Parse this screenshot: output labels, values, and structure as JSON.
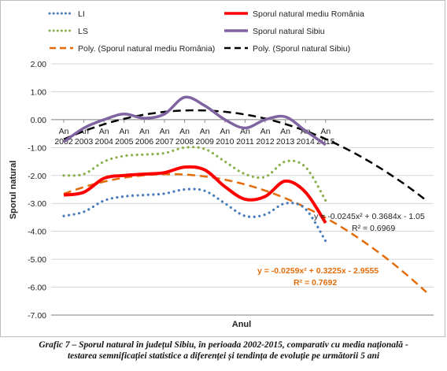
{
  "chart_data": {
    "type": "line",
    "ylabel": "Sporul natural",
    "xlabel": "Anul",
    "ylim": [
      -7.0,
      2.0
    ],
    "ytick_labels": [
      "2.00",
      "1.00",
      "0.00",
      "-1.00",
      "-2.00",
      "-3.00",
      "-4.00",
      "-5.00",
      "-6.00",
      "-7.00"
    ],
    "categories": [
      "An 2002",
      "An 2003",
      "An 2004",
      "An 2005",
      "An 2006",
      "An 2007",
      "An 2008",
      "An 2009",
      "An 2010",
      "An 2011",
      "An 2012",
      "An 2013",
      "An 2014",
      "An 2015"
    ],
    "category_labels_top": [
      "An",
      "An",
      "An",
      "An",
      "An",
      "An",
      "An",
      "An",
      "An",
      "An",
      "An",
      "An",
      "An",
      "An"
    ],
    "category_labels_bottom": [
      "2002",
      "2003",
      "2004",
      "2005",
      "2006",
      "2007",
      "2008",
      "2009",
      "2010",
      "2011",
      "2012",
      "2013",
      "2014",
      "2015"
    ],
    "legend_position": "top",
    "series": [
      {
        "name": "LI",
        "style": "dotted",
        "color": "#4a7ebb",
        "values": [
          -3.45,
          -3.3,
          -2.9,
          -2.75,
          -2.7,
          -2.65,
          -2.5,
          -2.55,
          -3.0,
          -3.45,
          -3.4,
          -3.0,
          -3.2,
          -4.35
        ]
      },
      {
        "name": "LS",
        "style": "dotted",
        "color": "#8db04e",
        "values": [
          -2.0,
          -1.95,
          -1.5,
          -1.3,
          -1.25,
          -1.2,
          -1.0,
          -1.05,
          -1.5,
          -1.95,
          -2.05,
          -1.5,
          -1.7,
          -2.9
        ]
      },
      {
        "name": "Sporul natural mediu România",
        "style": "solid",
        "color": "#ff0000",
        "values": [
          -2.7,
          -2.6,
          -2.1,
          -2.0,
          -1.95,
          -1.9,
          -1.7,
          -1.8,
          -2.4,
          -2.85,
          -2.75,
          -2.2,
          -2.6,
          -3.7
        ]
      },
      {
        "name": "Sporul natural Sibiu",
        "style": "solid",
        "color": "#8064a2",
        "values": [
          -0.8,
          -0.3,
          0.0,
          0.2,
          0.05,
          0.2,
          0.8,
          0.5,
          0.0,
          -0.3,
          0.0,
          0.1,
          -0.4,
          -0.9
        ]
      }
    ],
    "trendlines": [
      {
        "name": "Poly. (Sporul natural mediu România)",
        "color": "#e36c09",
        "style": "dashed",
        "a": -0.0259,
        "b": 0.3225,
        "c": -2.9555,
        "x_end": 19,
        "equation": "y = -0.0259x² + 0.3225x - 2.9555",
        "r2": "R² = 0.7692"
      },
      {
        "name": "Poly. (Sporul natural Sibiu)",
        "color": "#000000",
        "style": "dashed",
        "a": -0.0245,
        "b": 0.3684,
        "c": -1.05,
        "x_end": 19,
        "equation": "y = -0.0245x² + 0.3684x - 1.05",
        "r2": "R² = 0.6969"
      }
    ]
  },
  "caption": {
    "line1": "Grafic 7 – Sporul natural în județul Sibiu, în perioada 2002-2015, comparativ cu media națională -",
    "line2": "testarea semnificației statistice a diferenței și tendința de evoluție pe următorii 5 ani"
  }
}
